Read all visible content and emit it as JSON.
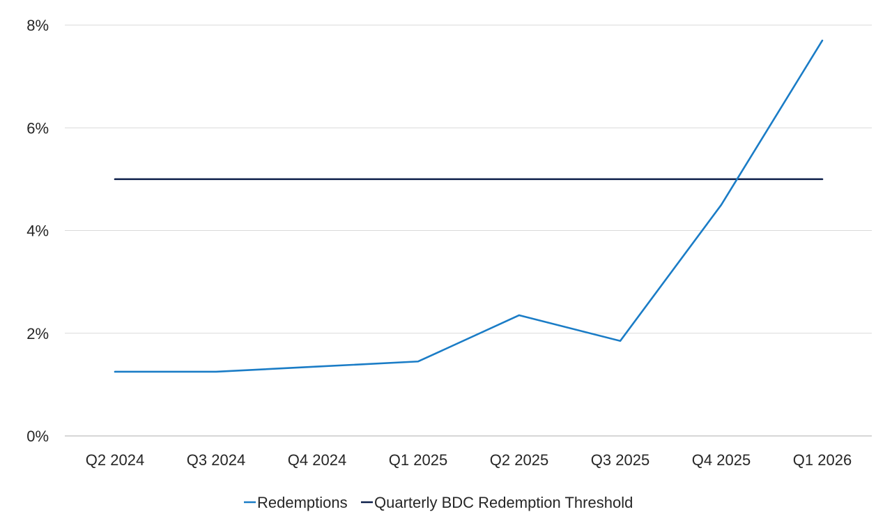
{
  "chart_data": {
    "type": "line",
    "categories": [
      "Q2 2024",
      "Q3 2024",
      "Q4 2024",
      "Q1 2025",
      "Q2 2025",
      "Q3 2025",
      "Q4 2025",
      "Q1 2026"
    ],
    "series": [
      {
        "name": "Redemptions",
        "color": "#1a7cc6",
        "values": [
          1.25,
          1.25,
          1.35,
          1.45,
          2.35,
          1.85,
          4.5,
          7.7
        ]
      },
      {
        "name": "Quarterly BDC Redemption Threshold",
        "color": "#0d1f4a",
        "values": [
          5.0,
          5.0,
          5.0,
          5.0,
          5.0,
          5.0,
          5.0,
          5.0
        ]
      }
    ],
    "ylim": [
      0,
      8
    ],
    "yticks": [
      0,
      2,
      4,
      6,
      8
    ],
    "ytick_labels": [
      "0%",
      "2%",
      "4%",
      "6%",
      "8%"
    ],
    "y_unit": "%",
    "grid": true,
    "legend_position": "bottom"
  }
}
